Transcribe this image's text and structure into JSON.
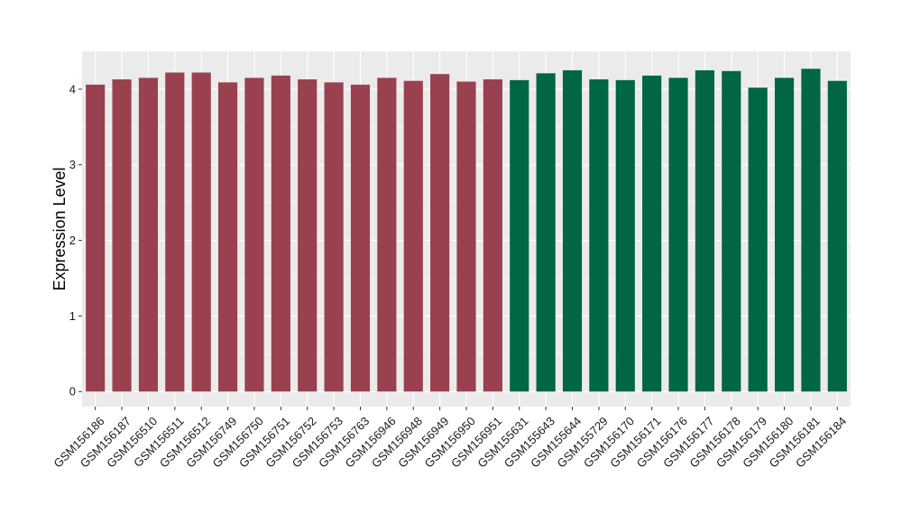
{
  "chart_data": {
    "type": "bar",
    "ylabel": "Expression Level",
    "xlabel": "",
    "ylim": [
      -0.2,
      4.5
    ],
    "y_ticks": [
      0,
      1,
      2,
      3,
      4
    ],
    "grid": true,
    "legend": "none",
    "categories": [
      "GSM156186",
      "GSM156187",
      "GSM156510",
      "GSM156511",
      "GSM156512",
      "GSM156749",
      "GSM156750",
      "GSM156751",
      "GSM156752",
      "GSM156753",
      "GSM156763",
      "GSM156946",
      "GSM156948",
      "GSM156949",
      "GSM156950",
      "GSM156951",
      "GSM155631",
      "GSM155643",
      "GSM155644",
      "GSM155729",
      "GSM156170",
      "GSM156171",
      "GSM156176",
      "GSM156177",
      "GSM156178",
      "GSM156179",
      "GSM156180",
      "GSM156181",
      "GSM156184"
    ],
    "values": [
      4.06,
      4.13,
      4.15,
      4.22,
      4.22,
      4.09,
      4.15,
      4.18,
      4.13,
      4.09,
      4.06,
      4.15,
      4.11,
      4.2,
      4.1,
      4.13,
      4.12,
      4.21,
      4.25,
      4.13,
      4.12,
      4.18,
      4.15,
      4.25,
      4.24,
      4.02,
      4.15,
      4.27,
      4.11
    ],
    "bar_colors": [
      "#99414f",
      "#99414f",
      "#99414f",
      "#99414f",
      "#99414f",
      "#99414f",
      "#99414f",
      "#99414f",
      "#99414f",
      "#99414f",
      "#99414f",
      "#99414f",
      "#99414f",
      "#99414f",
      "#99414f",
      "#99414f",
      "#006643",
      "#006643",
      "#006643",
      "#006643",
      "#006643",
      "#006643",
      "#006643",
      "#006643",
      "#006643",
      "#006643",
      "#006643",
      "#006643",
      "#006643"
    ]
  }
}
